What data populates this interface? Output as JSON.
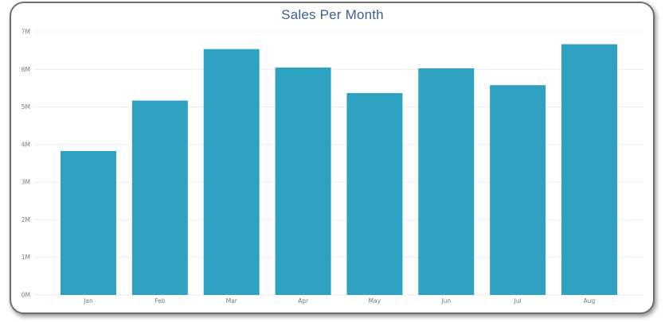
{
  "chart_data": {
    "type": "bar",
    "title": "Sales Per Month",
    "xlabel": "",
    "ylabel": "",
    "categories": [
      "Jan",
      "Feb",
      "Mar",
      "Apr",
      "May",
      "Jun",
      "Jul",
      "Aug"
    ],
    "values": [
      3.83,
      5.17,
      6.54,
      6.05,
      5.37,
      6.03,
      5.58,
      6.67
    ],
    "value_unit": "M",
    "ylim": [
      0,
      7
    ],
    "yticks": [
      "0M",
      "1M",
      "2M",
      "3M",
      "4M",
      "5M",
      "6M",
      "7M"
    ],
    "grid": true,
    "legend": "none",
    "bar_color": "#2ea2c0",
    "grid_color": "#ececec"
  }
}
